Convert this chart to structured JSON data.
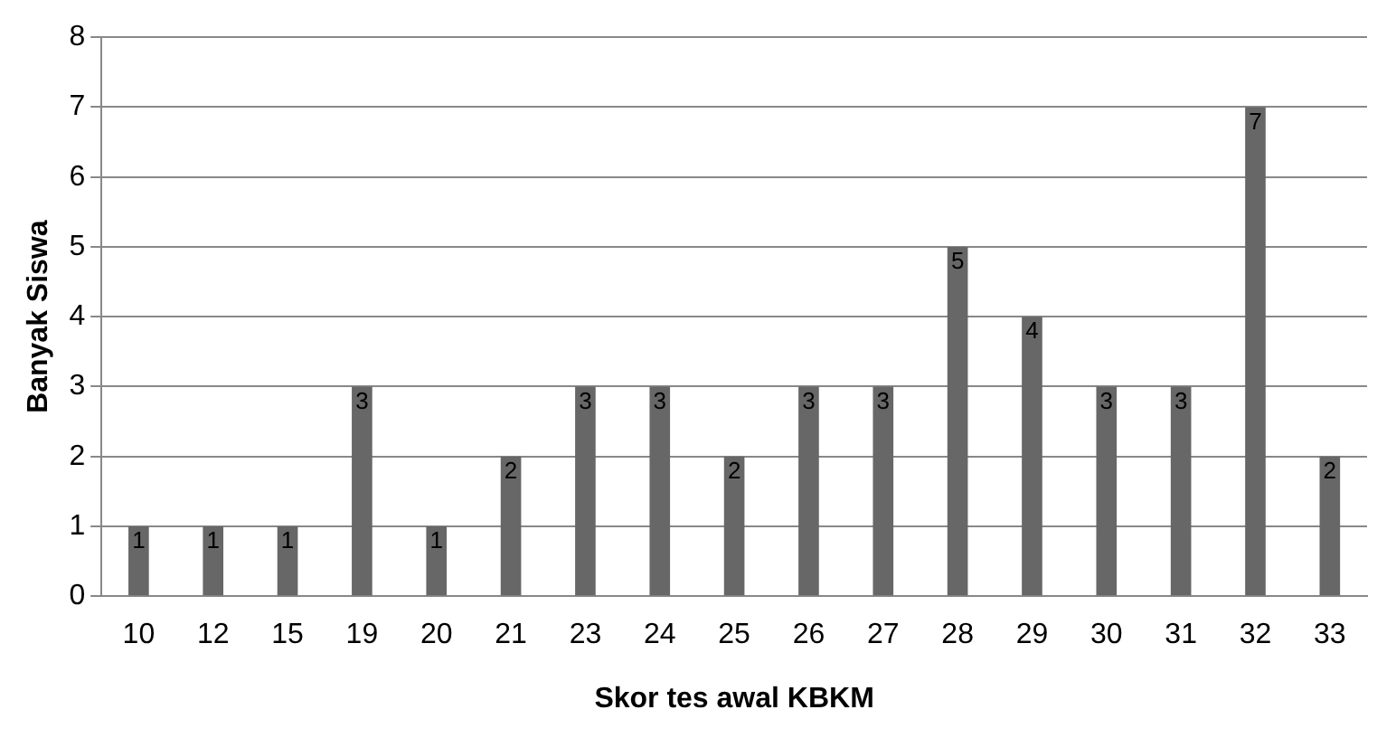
{
  "chart_data": {
    "type": "bar",
    "xlabel": "Skor tes awal KBKM",
    "ylabel": "Banyak Siswa",
    "categories": [
      "10",
      "12",
      "15",
      "19",
      "20",
      "21",
      "23",
      "24",
      "25",
      "26",
      "27",
      "28",
      "29",
      "30",
      "31",
      "32",
      "33"
    ],
    "values": [
      1,
      1,
      1,
      3,
      1,
      2,
      3,
      3,
      2,
      3,
      3,
      5,
      4,
      3,
      3,
      7,
      2
    ],
    "color": "#676767",
    "ylim": [
      0,
      8
    ],
    "yticks": [
      0,
      1,
      2,
      3,
      4,
      5,
      6,
      7,
      8
    ],
    "grid": "y",
    "data_labels": true,
    "legend": false
  }
}
